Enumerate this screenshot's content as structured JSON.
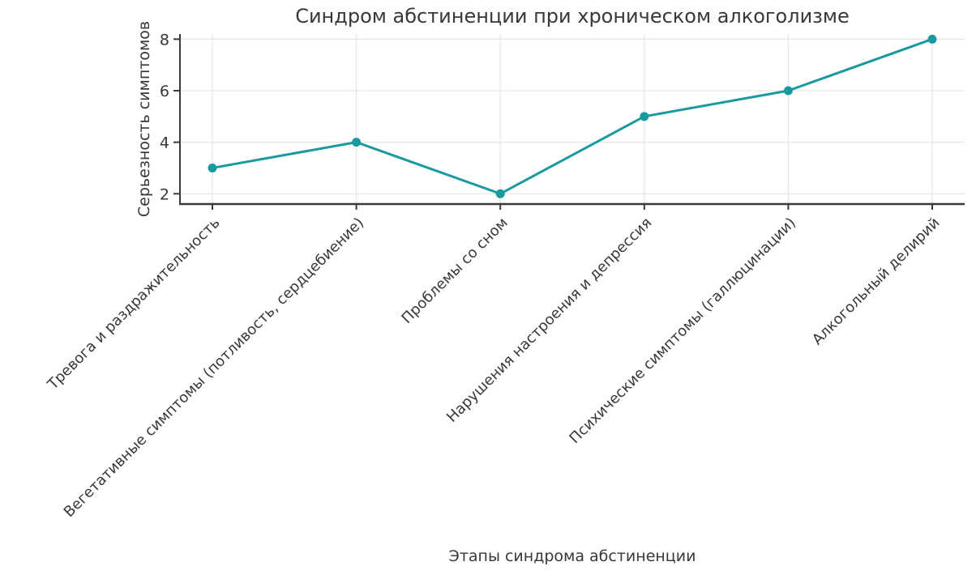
{
  "chart_data": {
    "type": "line",
    "title": "Синдром абстиненции при хроническом алкоголизме",
    "xlabel": "Этапы синдрома абстиненции",
    "ylabel": "Серьезность симптомов",
    "categories": [
      "Тревога и раздражительность",
      "Вегетативные симптомы (потливость, сердцебиение)",
      "Проблемы со сном",
      "Нарушения настроения и депрессия",
      "Психические симптомы (галлюцинации)",
      "Алкогольный делирий"
    ],
    "series": [
      {
        "name": "Серьезность симптомов",
        "values": [
          3,
          4,
          2,
          5,
          6,
          8
        ]
      }
    ],
    "yticks": [
      2,
      4,
      6,
      8
    ],
    "ylim": [
      1.6,
      8.2
    ],
    "grid": true,
    "legend": "none",
    "marker": "circle",
    "colors": {
      "line": "#1a9aa0",
      "axis": "#3a3a3a",
      "grid": "#e6e6e6",
      "text": "#383838",
      "background": "#ffffff"
    }
  }
}
